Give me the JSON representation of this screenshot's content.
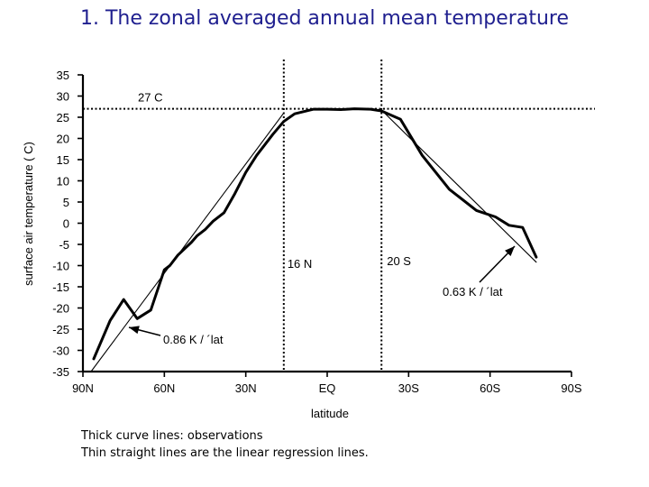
{
  "page": {
    "title": "1. The zonal averaged annual mean temperature",
    "caption_lines": [
      "Thick curve lines: observations",
      "Thin straight lines are the  linear regression lines."
    ]
  },
  "chart_data": {
    "type": "line",
    "xlabel": "latitude",
    "ylabel": "surface air temperature ( C)",
    "x_ticks": [
      {
        "lat": 90,
        "label": "90N"
      },
      {
        "lat": 60,
        "label": "60N"
      },
      {
        "lat": 30,
        "label": "30N"
      },
      {
        "lat": 0,
        "label": "EQ"
      },
      {
        "lat": -30,
        "label": "30S"
      },
      {
        "lat": -60,
        "label": "60S"
      },
      {
        "lat": -90,
        "label": "90S"
      }
    ],
    "y_ticks": [
      35,
      30,
      25,
      20,
      15,
      10,
      5,
      0,
      -5,
      -10,
      -15,
      -20,
      -25,
      -30,
      -35
    ],
    "xlim": [
      90,
      -90
    ],
    "ylim": [
      -35,
      35
    ],
    "grid": false,
    "series": [
      {
        "role": "observations",
        "points": [
          [
            86,
            -32
          ],
          [
            80,
            -23
          ],
          [
            75,
            -18
          ],
          [
            70,
            -22.5
          ],
          [
            65,
            -20.5
          ],
          [
            60,
            -11
          ],
          [
            58,
            -10
          ],
          [
            55,
            -7.5
          ],
          [
            50,
            -4.5
          ],
          [
            48,
            -3
          ],
          [
            45,
            -1.5
          ],
          [
            42,
            0.5
          ],
          [
            38,
            2.5
          ],
          [
            34,
            7
          ],
          [
            30,
            12
          ],
          [
            26,
            16
          ],
          [
            20,
            21
          ],
          [
            16,
            24
          ],
          [
            12,
            25.8
          ],
          [
            5,
            26.9
          ],
          [
            0,
            26.9
          ],
          [
            -5,
            26.8
          ],
          [
            -10,
            27
          ],
          [
            -16,
            26.9
          ],
          [
            -20,
            26.5
          ],
          [
            -27,
            24.5
          ],
          [
            -35,
            16
          ],
          [
            -45,
            8
          ],
          [
            -55,
            3
          ],
          [
            -62,
            1.5
          ],
          [
            -67,
            -0.5
          ],
          [
            -72,
            -1
          ],
          [
            -77,
            -8
          ]
        ]
      },
      {
        "role": "regression-north",
        "label": "0.86 K / ´lat",
        "points": [
          [
            87,
            -35
          ],
          [
            16,
            26
          ]
        ]
      },
      {
        "role": "regression-south",
        "label": "0.63 K / ´lat",
        "points": [
          [
            -20,
            26.7
          ],
          [
            -77,
            -9.2
          ]
        ]
      }
    ],
    "reference_lines": [
      {
        "orientation": "horizontal",
        "value": 27,
        "label": "27 C"
      },
      {
        "orientation": "vertical",
        "value": 16,
        "label": "16 N"
      },
      {
        "orientation": "vertical",
        "value": -20,
        "label": "20 S"
      }
    ]
  }
}
